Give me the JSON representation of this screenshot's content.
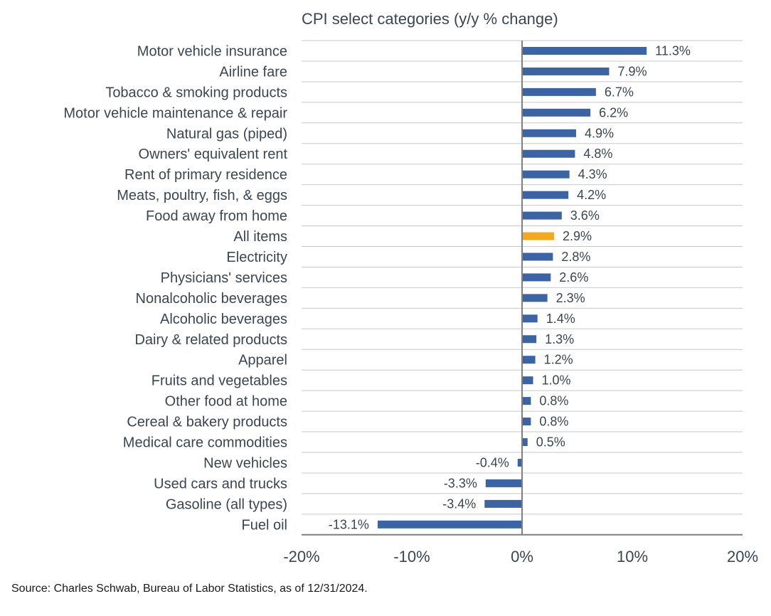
{
  "chart_data": {
    "type": "bar",
    "orientation": "horizontal",
    "title": "CPI select categories (y/y % change)",
    "xlabel": "",
    "ylabel": "",
    "xlim": [
      -20,
      20
    ],
    "xticks": [
      -20,
      -10,
      0,
      10,
      20
    ],
    "xtick_labels": [
      "-20%",
      "-10%",
      "0%",
      "10%",
      "20%"
    ],
    "grid": true,
    "categories": [
      "Motor vehicle insurance",
      "Airline fare",
      "Tobacco & smoking products",
      "Motor vehicle maintenance & repair",
      "Natural gas (piped)",
      "Owners' equivalent rent",
      "Rent of primary residence",
      "Meats, poultry, fish, & eggs",
      "Food away from home",
      "All items",
      "Electricity",
      "Physicians' services",
      "Nonalcoholic beverages",
      "Alcoholic beverages",
      "Dairy & related products",
      "Apparel",
      "Fruits and vegetables",
      "Other food at home",
      "Cereal & bakery products",
      "Medical care commodities",
      "New vehicles",
      "Used cars and trucks",
      "Gasoline (all types)",
      "Fuel oil"
    ],
    "values": [
      11.3,
      7.9,
      6.7,
      6.2,
      4.9,
      4.8,
      4.3,
      4.2,
      3.6,
      2.9,
      2.8,
      2.6,
      2.3,
      1.4,
      1.3,
      1.2,
      1.0,
      0.8,
      0.8,
      0.5,
      -0.4,
      -3.3,
      -3.4,
      -13.1
    ],
    "value_labels": [
      "11.3%",
      "7.9%",
      "6.7%",
      "6.2%",
      "4.9%",
      "4.8%",
      "4.3%",
      "4.2%",
      "3.6%",
      "2.9%",
      "2.8%",
      "2.6%",
      "2.3%",
      "1.4%",
      "1.3%",
      "1.2%",
      "1.0%",
      "0.8%",
      "0.8%",
      "0.5%",
      "-0.4%",
      "-3.3%",
      "-3.4%",
      "-13.1%"
    ],
    "highlight": "All items",
    "colors": {
      "bar": "#3b64a6",
      "highlight": "#f4a81c",
      "grid": "#c8c8c8",
      "axis": "#7f7f7f"
    }
  },
  "source": "Source: Charles Schwab, Bureau of Labor Statistics, as of 12/31/2024."
}
